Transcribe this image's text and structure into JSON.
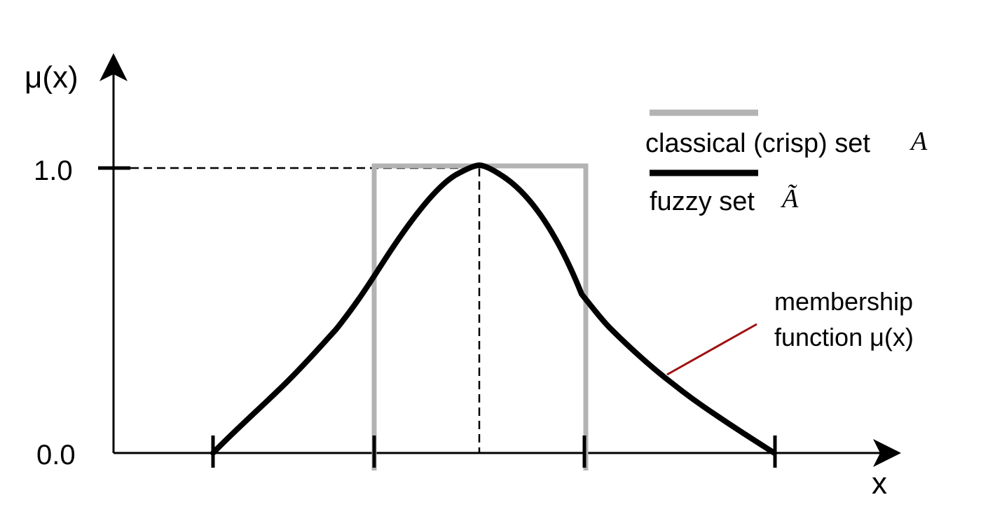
{
  "axes": {
    "y_label": "μ(x)",
    "x_label": "x",
    "y_tick_top": "1.0",
    "y_tick_bottom": "0.0"
  },
  "legend": {
    "crisp_label": "classical (crisp) set",
    "crisp_symbol": "A",
    "fuzzy_label": "fuzzy set",
    "fuzzy_symbol": "Ã"
  },
  "annotation": {
    "line1": "membership",
    "line2": "function μ(x)"
  },
  "colors": {
    "crisp": "#b3b3b3",
    "fuzzy": "#000000",
    "pointer": "#a01010",
    "axis": "#000000"
  }
}
